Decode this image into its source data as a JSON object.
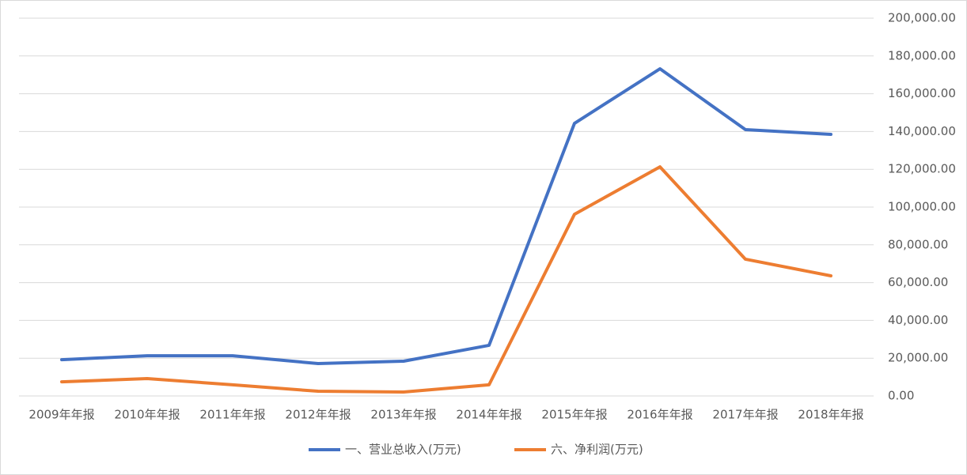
{
  "chart_data": {
    "type": "line",
    "categories": [
      "2009年年报",
      "2010年年报",
      "2011年年报",
      "2012年年报",
      "2013年年报",
      "2014年年报",
      "2015年年报",
      "2016年年报",
      "2017年年报",
      "2018年年报"
    ],
    "series": [
      {
        "name": "一、营业总收入(万元)",
        "color": "#4472c4",
        "values": [
          19200,
          21300,
          21300,
          17150,
          18400,
          26800,
          144350,
          173200,
          141000,
          138500
        ]
      },
      {
        "name": "六、净利润(万元)",
        "color": "#ed7d31",
        "values": [
          7500,
          9200,
          5900,
          2500,
          2100,
          5900,
          96200,
          121300,
          72400,
          63600
        ]
      }
    ],
    "ylim": [
      0,
      200000
    ],
    "yticks": [
      {
        "value": 0,
        "label": "0.00"
      },
      {
        "value": 20000,
        "label": "20,000.00"
      },
      {
        "value": 40000,
        "label": "40,000.00"
      },
      {
        "value": 60000,
        "label": "60,000.00"
      },
      {
        "value": 80000,
        "label": "80,000.00"
      },
      {
        "value": 100000,
        "label": "100,000.00"
      },
      {
        "value": 120000,
        "label": "120,000.00"
      },
      {
        "value": 140000,
        "label": "140,000.00"
      },
      {
        "value": 160000,
        "label": "160,000.00"
      },
      {
        "value": 180000,
        "label": "180,000.00"
      },
      {
        "value": 200000,
        "label": "200,000.00"
      }
    ],
    "grid": true,
    "legend": "bottom"
  }
}
